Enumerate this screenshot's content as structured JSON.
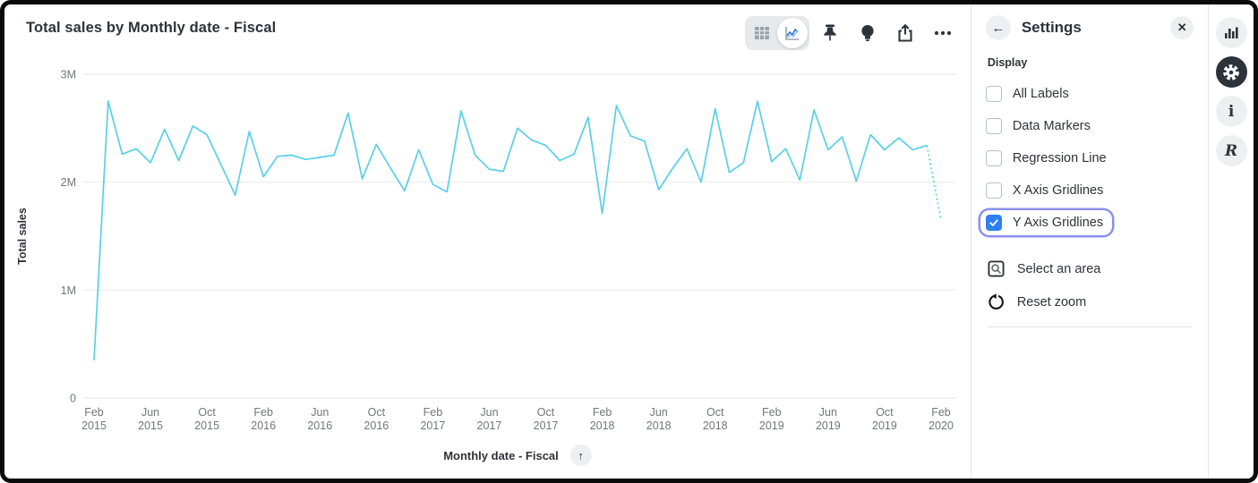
{
  "header": {
    "title": "Total sales by Monthly date - Fiscal"
  },
  "toolbar": {
    "icons": [
      "table-view-icon",
      "line-chart-view-icon",
      "pin-icon",
      "lightbulb-icon",
      "share-icon",
      "ellipsis-icon"
    ],
    "selected_view": "line-chart-view"
  },
  "settings_panel": {
    "title": "Settings",
    "back_icon": "back-arrow-icon",
    "close_icon": "close-icon",
    "section_label": "Display",
    "checkboxes": [
      {
        "label": "All Labels",
        "checked": false
      },
      {
        "label": "Data Markers",
        "checked": false
      },
      {
        "label": "Regression Line",
        "checked": false
      },
      {
        "label": "X Axis Gridlines",
        "checked": false
      },
      {
        "label": "Y Axis Gridlines",
        "checked": true
      }
    ],
    "actions": [
      {
        "label": "Select an area",
        "icon": "area-select-icon"
      },
      {
        "label": "Reset zoom",
        "icon": "reset-zoom-icon"
      }
    ]
  },
  "right_rail": {
    "icons": [
      "bar-chart-icon",
      "gear-icon",
      "info-icon",
      "r-logo-icon"
    ],
    "active": "gear-icon"
  },
  "colors": {
    "line": "#57d0e6",
    "gridline": "#ebebeb",
    "axis_text": "#70767c",
    "dark_text": "#2d333a",
    "checkbox_blue": "#2e80f0",
    "focus_ring": "#8b90ee"
  },
  "chart_data": {
    "type": "line",
    "title": "Total sales by Monthly date - Fiscal",
    "xlabel": "Monthly date - Fiscal",
    "ylabel": "Total sales",
    "ylim": [
      0,
      3000000
    ],
    "x_range": {
      "start": "2015-02",
      "end": "2020-02",
      "interval": "month"
    },
    "grid": "y-only",
    "legend": "none",
    "y_ticks": [
      {
        "value": 0,
        "label": "0"
      },
      {
        "value": 1000000,
        "label": "1M"
      },
      {
        "value": 2000000,
        "label": "2M"
      },
      {
        "value": 3000000,
        "label": "3M"
      }
    ],
    "x_tick_every": 4,
    "x_tick_labels": [
      {
        "month": "Feb",
        "year": "2015"
      },
      {
        "month": "Jun",
        "year": "2015"
      },
      {
        "month": "Oct",
        "year": "2015"
      },
      {
        "month": "Feb",
        "year": "2016"
      },
      {
        "month": "Jun",
        "year": "2016"
      },
      {
        "month": "Oct",
        "year": "2016"
      },
      {
        "month": "Feb",
        "year": "2017"
      },
      {
        "month": "Jun",
        "year": "2017"
      },
      {
        "month": "Oct",
        "year": "2017"
      },
      {
        "month": "Feb",
        "year": "2018"
      },
      {
        "month": "Jun",
        "year": "2018"
      },
      {
        "month": "Oct",
        "year": "2018"
      },
      {
        "month": "Feb",
        "year": "2019"
      },
      {
        "month": "Jun",
        "year": "2019"
      },
      {
        "month": "Oct",
        "year": "2019"
      },
      {
        "month": "Feb",
        "year": "2020"
      }
    ],
    "series": [
      {
        "name": "Total sales",
        "note": "final segment (Jan 2020 to Feb 2020) drawn dotted - incomplete period",
        "values": [
          350000,
          2750000,
          2260000,
          2310000,
          2180000,
          2490000,
          2200000,
          2520000,
          2440000,
          2160000,
          1880000,
          2470000,
          2050000,
          2240000,
          2250000,
          2210000,
          2230000,
          2250000,
          2640000,
          2030000,
          2350000,
          2130000,
          1920000,
          2300000,
          1980000,
          1910000,
          2660000,
          2250000,
          2120000,
          2100000,
          2500000,
          2390000,
          2340000,
          2200000,
          2260000,
          2600000,
          1710000,
          2710000,
          2430000,
          2380000,
          1930000,
          2130000,
          2310000,
          2000000,
          2680000,
          2090000,
          2180000,
          2750000,
          2190000,
          2310000,
          2020000,
          2670000,
          2300000,
          2420000,
          2010000,
          2440000,
          2300000,
          2410000,
          2300000,
          2340000,
          1650000
        ]
      }
    ]
  }
}
